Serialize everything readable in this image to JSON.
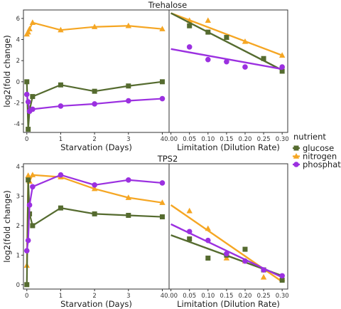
{
  "legend": {
    "title": "nutrient",
    "items": [
      {
        "label": "glucose",
        "color": "#556b2f",
        "shape": "square"
      },
      {
        "label": "nitrogen",
        "color": "#f5a623",
        "shape": "triangle"
      },
      {
        "label": "phosphate",
        "color": "#9b30e0",
        "shape": "circle"
      }
    ],
    "placement": "right"
  },
  "colors": {
    "glucose": "#556b2f",
    "nitrogen": "#f5a623",
    "phosphate": "#9b30e0"
  },
  "chart_data": [
    {
      "title": "Trehalose",
      "type": "line",
      "xlabel": "Starvation (Days)",
      "ylabel": "log2(fold change)",
      "xlim": [
        -0.1,
        4.2
      ],
      "ylim": [
        -4.8,
        6.8
      ],
      "xticks": [
        0,
        1,
        2,
        3,
        4
      ],
      "xticklabels": [
        "0",
        "1",
        "2",
        "3",
        "4"
      ],
      "yticks": [
        -4,
        -2,
        0,
        2,
        4,
        6
      ],
      "yticklabels": [
        "-4",
        "-2",
        "0",
        "2",
        "4",
        "6"
      ],
      "series": [
        {
          "name": "nitrogen",
          "x": [
            0,
            0.04,
            0.08,
            0.17,
            1,
            2,
            3,
            4
          ],
          "y": [
            4.5,
            4.7,
            5.0,
            5.6,
            4.9,
            5.2,
            5.3,
            5.0
          ]
        },
        {
          "name": "glucose",
          "x": [
            0,
            0.04,
            0.08,
            0.17,
            1,
            2,
            3,
            4
          ],
          "y": [
            0.0,
            -4.5,
            -2.7,
            -1.4,
            -0.3,
            -0.9,
            -0.4,
            0.0
          ]
        },
        {
          "name": "phosphate",
          "x": [
            0,
            0.04,
            0.08,
            0.17,
            1,
            2,
            3,
            4
          ],
          "y": [
            -1.2,
            -1.9,
            -2.8,
            -2.6,
            -2.3,
            -2.1,
            -1.8,
            -1.6
          ]
        }
      ]
    },
    {
      "title": "",
      "type": "scatter",
      "xlabel": "Limitation (Dilution Rate)",
      "ylabel": "",
      "xlim": [
        -0.005,
        0.315
      ],
      "ylim": [
        -4.8,
        6.8
      ],
      "xticks": [
        0,
        0.05,
        0.1,
        0.15,
        0.2,
        0.25,
        0.3
      ],
      "xticklabels": [
        "0.00",
        "0.05",
        "0.10",
        "0.15",
        "0.20",
        "0.25",
        "0.30"
      ],
      "series": [
        {
          "name": "nitrogen",
          "x": [
            0.05,
            0.1,
            0.15,
            0.2,
            0.3
          ],
          "y": [
            5.8,
            5.8,
            4.2,
            3.8,
            2.5
          ],
          "fit": {
            "x": [
              0,
              0.3
            ],
            "y": [
              6.5,
              2.5
            ]
          }
        },
        {
          "name": "glucose",
          "x": [
            0.05,
            0.1,
            0.15,
            0.25,
            0.3
          ],
          "y": [
            5.3,
            4.7,
            4.2,
            2.2,
            1.0
          ],
          "fit": {
            "x": [
              0,
              0.3
            ],
            "y": [
              6.5,
              1.1
            ]
          }
        },
        {
          "name": "phosphate",
          "x": [
            0.05,
            0.1,
            0.15,
            0.2,
            0.3
          ],
          "y": [
            3.3,
            2.1,
            1.9,
            1.4,
            1.4
          ],
          "fit": {
            "x": [
              0,
              0.3
            ],
            "y": [
              3.1,
              1.2
            ]
          }
        }
      ]
    },
    {
      "title": "TPS2",
      "type": "line",
      "xlabel": "Starvation (Days)",
      "ylabel": "log2(fold change)",
      "xlim": [
        -0.1,
        4.2
      ],
      "ylim": [
        -0.15,
        4.1
      ],
      "xticks": [
        0,
        1,
        2,
        3,
        4
      ],
      "xticklabels": [
        "0",
        "1",
        "2",
        "3",
        "4"
      ],
      "yticks": [
        0,
        1,
        2,
        3,
        4
      ],
      "yticklabels": [
        "0",
        "1",
        "2",
        "3",
        "4"
      ],
      "series": [
        {
          "name": "nitrogen",
          "x": [
            0,
            0.04,
            0.08,
            0.17,
            1,
            2,
            3,
            4
          ],
          "y": [
            0.65,
            3.7,
            3.5,
            3.72,
            3.65,
            3.25,
            2.95,
            2.78
          ]
        },
        {
          "name": "glucose",
          "x": [
            0,
            0.04,
            0.08,
            0.17,
            1,
            2,
            3,
            4
          ],
          "y": [
            0.0,
            3.55,
            2.4,
            2.0,
            2.6,
            2.4,
            2.35,
            2.3
          ]
        },
        {
          "name": "phosphate",
          "x": [
            0,
            0.04,
            0.08,
            0.17,
            1,
            2,
            3,
            4
          ],
          "y": [
            1.15,
            1.5,
            2.7,
            3.32,
            3.72,
            3.38,
            3.55,
            3.45
          ]
        }
      ]
    },
    {
      "title": "",
      "type": "scatter",
      "xlabel": "Limitation (Dilution Rate)",
      "ylabel": "",
      "xlim": [
        -0.005,
        0.315
      ],
      "ylim": [
        -0.15,
        4.1
      ],
      "xticks": [
        0,
        0.05,
        0.1,
        0.15,
        0.2,
        0.25,
        0.3
      ],
      "xticklabels": [
        "0.00",
        "0.05",
        "0.10",
        "0.15",
        "0.20",
        "0.25",
        "0.30"
      ],
      "series": [
        {
          "name": "nitrogen",
          "x": [
            0.05,
            0.1,
            0.15,
            0.2,
            0.25,
            0.3
          ],
          "y": [
            2.5,
            1.9,
            0.9,
            0.8,
            0.25,
            0.2
          ],
          "fit": {
            "x": [
              0,
              0.3
            ],
            "y": [
              2.7,
              0.1
            ]
          }
        },
        {
          "name": "glucose",
          "x": [
            0.05,
            0.1,
            0.15,
            0.2,
            0.25,
            0.3
          ],
          "y": [
            1.55,
            0.9,
            1.0,
            1.2,
            0.5,
            0.15
          ],
          "fit": {
            "x": [
              0,
              0.3
            ],
            "y": [
              1.68,
              0.3
            ]
          }
        },
        {
          "name": "phosphate",
          "x": [
            0.05,
            0.1,
            0.15,
            0.2,
            0.25,
            0.3
          ],
          "y": [
            1.8,
            1.5,
            1.05,
            0.8,
            0.5,
            0.3
          ],
          "fit": {
            "x": [
              0,
              0.3
            ],
            "y": [
              2.05,
              0.25
            ]
          }
        }
      ]
    }
  ]
}
